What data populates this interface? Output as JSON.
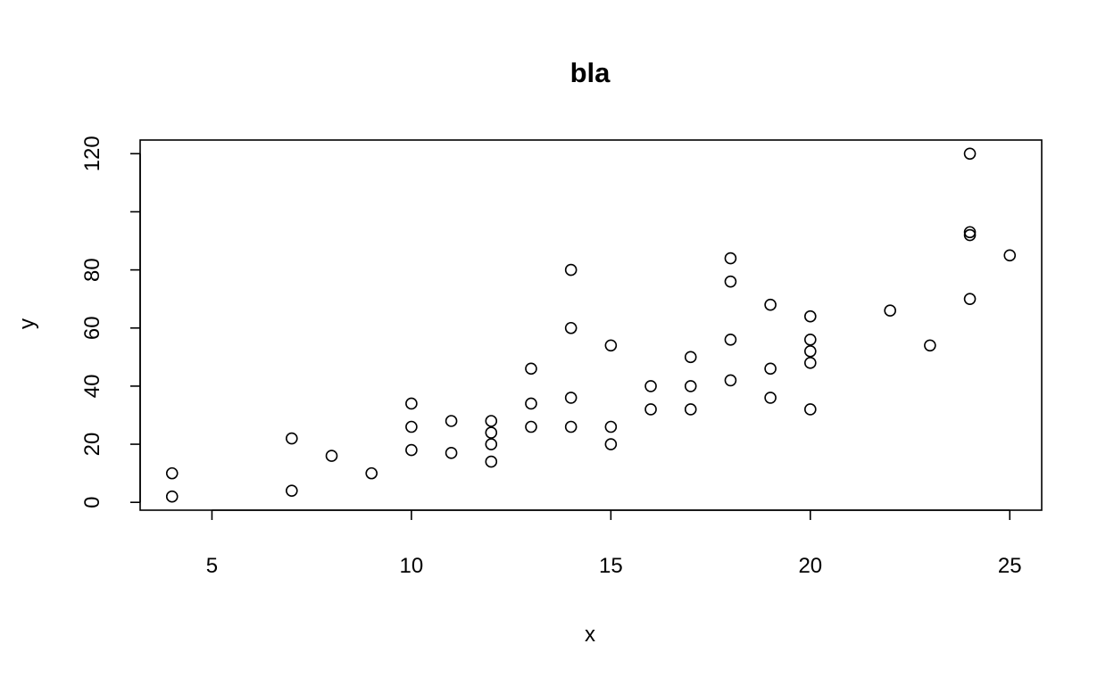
{
  "chart_data": {
    "type": "scatter",
    "title": "bla",
    "xlabel": "x",
    "ylabel": "y",
    "xlim": [
      3.2,
      25.8
    ],
    "ylim": [
      -2.7,
      124.7
    ],
    "xticks": [
      5,
      10,
      15,
      20,
      25
    ],
    "yticks": [
      0,
      20,
      40,
      60,
      80,
      100,
      120
    ],
    "ytick_labels": [
      "0",
      "20",
      "40",
      "60",
      "80",
      "",
      "120"
    ],
    "grid": false,
    "points": [
      {
        "x": 4,
        "y": 2
      },
      {
        "x": 4,
        "y": 10
      },
      {
        "x": 7,
        "y": 4
      },
      {
        "x": 7,
        "y": 22
      },
      {
        "x": 8,
        "y": 16
      },
      {
        "x": 9,
        "y": 10
      },
      {
        "x": 10,
        "y": 18
      },
      {
        "x": 10,
        "y": 26
      },
      {
        "x": 10,
        "y": 34
      },
      {
        "x": 11,
        "y": 17
      },
      {
        "x": 11,
        "y": 28
      },
      {
        "x": 12,
        "y": 14
      },
      {
        "x": 12,
        "y": 20
      },
      {
        "x": 12,
        "y": 24
      },
      {
        "x": 12,
        "y": 28
      },
      {
        "x": 13,
        "y": 26
      },
      {
        "x": 13,
        "y": 34
      },
      {
        "x": 13,
        "y": 46
      },
      {
        "x": 14,
        "y": 26
      },
      {
        "x": 14,
        "y": 36
      },
      {
        "x": 14,
        "y": 60
      },
      {
        "x": 14,
        "y": 80
      },
      {
        "x": 15,
        "y": 20
      },
      {
        "x": 15,
        "y": 26
      },
      {
        "x": 15,
        "y": 54
      },
      {
        "x": 16,
        "y": 32
      },
      {
        "x": 16,
        "y": 40
      },
      {
        "x": 17,
        "y": 32
      },
      {
        "x": 17,
        "y": 40
      },
      {
        "x": 17,
        "y": 50
      },
      {
        "x": 18,
        "y": 42
      },
      {
        "x": 18,
        "y": 56
      },
      {
        "x": 18,
        "y": 76
      },
      {
        "x": 18,
        "y": 84
      },
      {
        "x": 19,
        "y": 36
      },
      {
        "x": 19,
        "y": 46
      },
      {
        "x": 19,
        "y": 68
      },
      {
        "x": 20,
        "y": 32
      },
      {
        "x": 20,
        "y": 48
      },
      {
        "x": 20,
        "y": 52
      },
      {
        "x": 20,
        "y": 56
      },
      {
        "x": 20,
        "y": 64
      },
      {
        "x": 22,
        "y": 66
      },
      {
        "x": 23,
        "y": 54
      },
      {
        "x": 24,
        "y": 70
      },
      {
        "x": 24,
        "y": 92
      },
      {
        "x": 24,
        "y": 93
      },
      {
        "x": 24,
        "y": 120
      },
      {
        "x": 25,
        "y": 85
      }
    ]
  }
}
